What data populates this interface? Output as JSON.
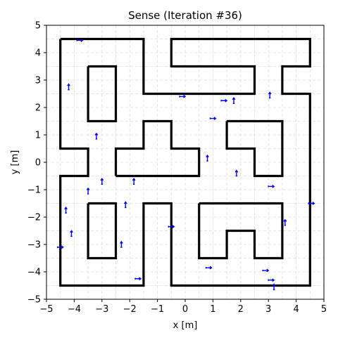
{
  "chart_data": {
    "type": "scatter",
    "title": "Sense (Iteration #36)",
    "xlabel": "x [m]",
    "ylabel": "y [m]",
    "xlim": [
      -5,
      5
    ],
    "ylim": [
      -5,
      5
    ],
    "xticks": [
      -5,
      -4,
      -3,
      -2,
      -1,
      0,
      1,
      2,
      3,
      4,
      5
    ],
    "yticks": [
      -5,
      -4,
      -3,
      -2,
      -1,
      0,
      1,
      2,
      3,
      4,
      5
    ],
    "xtick_labels": [
      "−5",
      "−4",
      "−3",
      "−2",
      "−1",
      "0",
      "1",
      "2",
      "3",
      "4",
      "5"
    ],
    "ytick_labels": [
      "−5",
      "−4",
      "−3",
      "−2",
      "−1",
      "0",
      "1",
      "2",
      "3",
      "4",
      "5"
    ],
    "grid": true,
    "colors": {
      "walls": "#000000",
      "particles": "#0000ff",
      "grid": "#dddddd"
    },
    "walls": [
      [
        [
          -4.5,
          4.5
        ],
        [
          -1.5,
          4.5
        ],
        [
          -1.5,
          2.5
        ],
        [
          2.5,
          2.5
        ],
        [
          2.5,
          3.5
        ],
        [
          -0.5,
          3.5
        ],
        [
          -0.5,
          4.5
        ],
        [
          4.5,
          4.5
        ],
        [
          4.5,
          3.5
        ],
        [
          3.5,
          3.5
        ],
        [
          3.5,
          2.5
        ],
        [
          4.5,
          2.5
        ],
        [
          4.5,
          -4.5
        ],
        [
          -0.5,
          -4.5
        ],
        [
          -0.5,
          -1.5
        ],
        [
          -1.5,
          -1.5
        ],
        [
          -1.5,
          -4.5
        ],
        [
          -4.5,
          -4.5
        ],
        [
          -4.5,
          -0.5
        ],
        [
          -3.5,
          -0.5
        ],
        [
          -3.5,
          0.5
        ],
        [
          -4.5,
          0.5
        ],
        [
          -4.5,
          4.5
        ]
      ],
      [
        [
          -3.5,
          3.5
        ],
        [
          -2.5,
          3.5
        ],
        [
          -2.5,
          1.5
        ],
        [
          -3.5,
          1.5
        ],
        [
          -3.5,
          3.5
        ]
      ],
      [
        [
          -2.5,
          -0.5
        ],
        [
          0.5,
          -0.5
        ],
        [
          0.5,
          0.5
        ],
        [
          -0.5,
          0.5
        ],
        [
          -0.5,
          1.5
        ],
        [
          -1.5,
          1.5
        ],
        [
          -1.5,
          0.5
        ],
        [
          -2.5,
          0.5
        ],
        [
          -2.5,
          -0.5
        ]
      ],
      [
        [
          1.5,
          1.5
        ],
        [
          3.5,
          1.5
        ],
        [
          3.5,
          -0.5
        ],
        [
          2.5,
          -0.5
        ],
        [
          2.5,
          0.5
        ],
        [
          1.5,
          0.5
        ],
        [
          1.5,
          1.5
        ]
      ],
      [
        [
          -3.5,
          -1.5
        ],
        [
          -2.5,
          -1.5
        ],
        [
          -2.5,
          -3.5
        ],
        [
          -3.5,
          -3.5
        ],
        [
          -3.5,
          -1.5
        ]
      ],
      [
        [
          0.5,
          -1.5
        ],
        [
          3.5,
          -1.5
        ],
        [
          3.5,
          -3.5
        ],
        [
          2.5,
          -3.5
        ],
        [
          2.5,
          -2.5
        ],
        [
          1.5,
          -2.5
        ],
        [
          1.5,
          -3.5
        ],
        [
          0.5,
          -3.5
        ],
        [
          0.5,
          -1.5
        ]
      ]
    ],
    "particles": [
      {
        "x": -3.8,
        "y": 4.45,
        "angle": 0
      },
      {
        "x": -4.2,
        "y": 2.75,
        "angle": 90
      },
      {
        "x": -3.2,
        "y": 0.95,
        "angle": 90
      },
      {
        "x": -3.5,
        "y": -1.05,
        "angle": 90
      },
      {
        "x": -3.0,
        "y": -0.7,
        "angle": 90
      },
      {
        "x": -4.3,
        "y": -1.75,
        "angle": 90
      },
      {
        "x": -4.1,
        "y": -2.6,
        "angle": 90
      },
      {
        "x": -4.5,
        "y": -3.1,
        "angle": 0
      },
      {
        "x": -2.15,
        "y": -1.55,
        "angle": 90
      },
      {
        "x": -1.85,
        "y": -0.7,
        "angle": 90
      },
      {
        "x": -2.3,
        "y": -3.0,
        "angle": 90
      },
      {
        "x": -1.7,
        "y": -4.25,
        "angle": 0
      },
      {
        "x": -0.5,
        "y": -2.35,
        "angle": 0
      },
      {
        "x": -0.1,
        "y": 2.4,
        "angle": 0
      },
      {
        "x": 1.0,
        "y": 1.6,
        "angle": 0
      },
      {
        "x": 1.4,
        "y": 2.25,
        "angle": 0
      },
      {
        "x": 1.75,
        "y": 2.25,
        "angle": 90
      },
      {
        "x": 0.8,
        "y": 0.15,
        "angle": 90
      },
      {
        "x": 1.85,
        "y": -0.4,
        "angle": 90
      },
      {
        "x": 3.05,
        "y": 2.45,
        "angle": 90
      },
      {
        "x": 3.1,
        "y": -0.88,
        "angle": 0
      },
      {
        "x": 3.6,
        "y": -2.2,
        "angle": 90
      },
      {
        "x": 4.55,
        "y": -1.5,
        "angle": 0
      },
      {
        "x": 0.85,
        "y": -3.85,
        "angle": 0
      },
      {
        "x": 2.9,
        "y": -3.95,
        "angle": 0
      },
      {
        "x": 3.1,
        "y": -4.3,
        "angle": 0
      },
      {
        "x": 3.2,
        "y": -4.55,
        "angle": 90
      }
    ]
  }
}
